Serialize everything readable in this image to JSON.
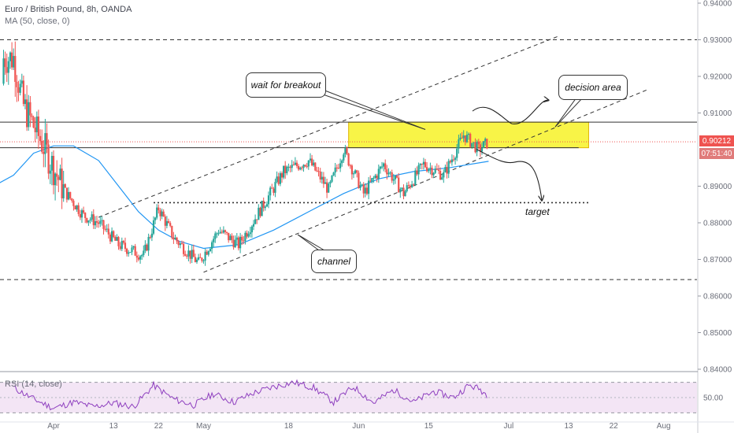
{
  "header": {
    "title": "Euro / British Pound, 8h, OANDA",
    "ma_label": "MA (50, close, 0)",
    "rsi_label": "RSI (14, close)"
  },
  "annotations": {
    "wait_for_breakout": "wait for breakout",
    "decision_area": "decision area",
    "channel": "channel",
    "target": "target"
  },
  "price_tags": {
    "current_price": "0.90212",
    "countdown": "07:51:40"
  },
  "colors": {
    "up": "#26a69a",
    "down": "#ef5350",
    "ma": "#2196f3",
    "rsi": "#8e3fbf",
    "zone": "#f5f000"
  },
  "chart_data": [
    {
      "type": "candlestick",
      "symbol": "Euro / British Pound, 8h, OANDA",
      "x_ticks": [
        "Apr",
        "13",
        "22",
        "May",
        "18",
        "Jun",
        "15",
        "Jul",
        "13",
        "22",
        "Aug"
      ],
      "y_ticks": [
        "0.94000",
        "0.93000",
        "0.92000",
        "0.91000",
        "0.89000",
        "0.88000",
        "0.87000",
        "0.86000",
        "0.85000",
        "0.84000"
      ],
      "ylim": [
        0.84,
        0.94
      ],
      "last_price": 0.90212,
      "close_path": [
        {
          "x": "Mar 24",
          "y": 0.925
        },
        {
          "x": "Mar 26",
          "y": 0.912
        },
        {
          "x": "Mar 30",
          "y": 0.901
        },
        {
          "x": "Apr 3",
          "y": 0.889
        },
        {
          "x": "Apr 7",
          "y": 0.882
        },
        {
          "x": "Apr 10",
          "y": 0.88
        },
        {
          "x": "Apr 14",
          "y": 0.874
        },
        {
          "x": "Apr 19",
          "y": 0.871
        },
        {
          "x": "Apr 22",
          "y": 0.884
        },
        {
          "x": "Apr 25",
          "y": 0.876
        },
        {
          "x": "Apr 30",
          "y": 0.869
        },
        {
          "x": "May 4",
          "y": 0.878
        },
        {
          "x": "May 8",
          "y": 0.874
        },
        {
          "x": "May 13",
          "y": 0.885
        },
        {
          "x": "May 17",
          "y": 0.894
        },
        {
          "x": "May 22",
          "y": 0.897
        },
        {
          "x": "May 26",
          "y": 0.889
        },
        {
          "x": "May 29",
          "y": 0.9
        },
        {
          "x": "Jun 2",
          "y": 0.888
        },
        {
          "x": "Jun 6",
          "y": 0.896
        },
        {
          "x": "Jun 10",
          "y": 0.888
        },
        {
          "x": "Jun 14",
          "y": 0.896
        },
        {
          "x": "Jun 18",
          "y": 0.893
        },
        {
          "x": "Jun 22",
          "y": 0.904
        },
        {
          "x": "Jun 25",
          "y": 0.9
        },
        {
          "x": "Jun 27",
          "y": 0.90212
        }
      ],
      "ma_path": [
        {
          "x": "Mar 24",
          "y": 0.893
        },
        {
          "x": "Mar 28",
          "y": 0.899
        },
        {
          "x": "Apr 1",
          "y": 0.901
        },
        {
          "x": "Apr 5",
          "y": 0.901
        },
        {
          "x": "Apr 10",
          "y": 0.897
        },
        {
          "x": "Apr 14",
          "y": 0.89
        },
        {
          "x": "Apr 18",
          "y": 0.883
        },
        {
          "x": "Apr 22",
          "y": 0.878
        },
        {
          "x": "Apr 26",
          "y": 0.875
        },
        {
          "x": "May 1",
          "y": 0.873
        },
        {
          "x": "May 8",
          "y": 0.874
        },
        {
          "x": "May 15",
          "y": 0.878
        },
        {
          "x": "May 22",
          "y": 0.883
        },
        {
          "x": "May 29",
          "y": 0.888
        },
        {
          "x": "Jun 5",
          "y": 0.892
        },
        {
          "x": "Jun 12",
          "y": 0.894
        },
        {
          "x": "Jun 19",
          "y": 0.895
        },
        {
          "x": "Jun 27",
          "y": 0.8968
        }
      ],
      "levels": [
        {
          "name": "upper-dashed",
          "y": 0.93
        },
        {
          "name": "resistance",
          "y": 0.9075
        },
        {
          "name": "support",
          "y": 0.9005
        },
        {
          "name": "target",
          "y": 0.8855
        },
        {
          "name": "lower-dashed",
          "y": 0.8645
        }
      ],
      "decision_zone": {
        "x_start": "May 30",
        "x_end": "Jul 17",
        "y_low": 0.9005,
        "y_high": 0.9075
      },
      "channel": {
        "upper": [
          {
            "x": "Apr 10",
            "y": 0.8815
          },
          {
            "x": "Jul 11",
            "y": 0.931
          }
        ],
        "lower": [
          {
            "x": "May 1",
            "y": 0.8665
          },
          {
            "x": "Jul 29",
            "y": 0.9165
          }
        ]
      }
    },
    {
      "type": "line",
      "name": "RSI (14, close)",
      "y_ticks": [
        "50.00"
      ],
      "band": [
        30,
        70
      ],
      "ylim": [
        20,
        80
      ],
      "values": [
        {
          "x": "Mar 24",
          "y": 63
        },
        {
          "x": "Mar 28",
          "y": 48
        },
        {
          "x": "Apr 1",
          "y": 36
        },
        {
          "x": "Apr 5",
          "y": 44
        },
        {
          "x": "Apr 9",
          "y": 38
        },
        {
          "x": "Apr 13",
          "y": 43
        },
        {
          "x": "Apr 17",
          "y": 38
        },
        {
          "x": "Apr 21",
          "y": 66
        },
        {
          "x": "Apr 25",
          "y": 48
        },
        {
          "x": "Apr 29",
          "y": 40
        },
        {
          "x": "May 3",
          "y": 55
        },
        {
          "x": "May 7",
          "y": 44
        },
        {
          "x": "May 11",
          "y": 56
        },
        {
          "x": "May 15",
          "y": 64
        },
        {
          "x": "May 19",
          "y": 70
        },
        {
          "x": "May 23",
          "y": 63
        },
        {
          "x": "May 27",
          "y": 44
        },
        {
          "x": "May 31",
          "y": 64
        },
        {
          "x": "Jun 4",
          "y": 43
        },
        {
          "x": "Jun 8",
          "y": 60
        },
        {
          "x": "Jun 12",
          "y": 44
        },
        {
          "x": "Jun 16",
          "y": 58
        },
        {
          "x": "Jun 20",
          "y": 50
        },
        {
          "x": "Jun 23",
          "y": 66
        },
        {
          "x": "Jun 25",
          "y": 62
        },
        {
          "x": "Jun 27",
          "y": 52
        }
      ]
    }
  ]
}
